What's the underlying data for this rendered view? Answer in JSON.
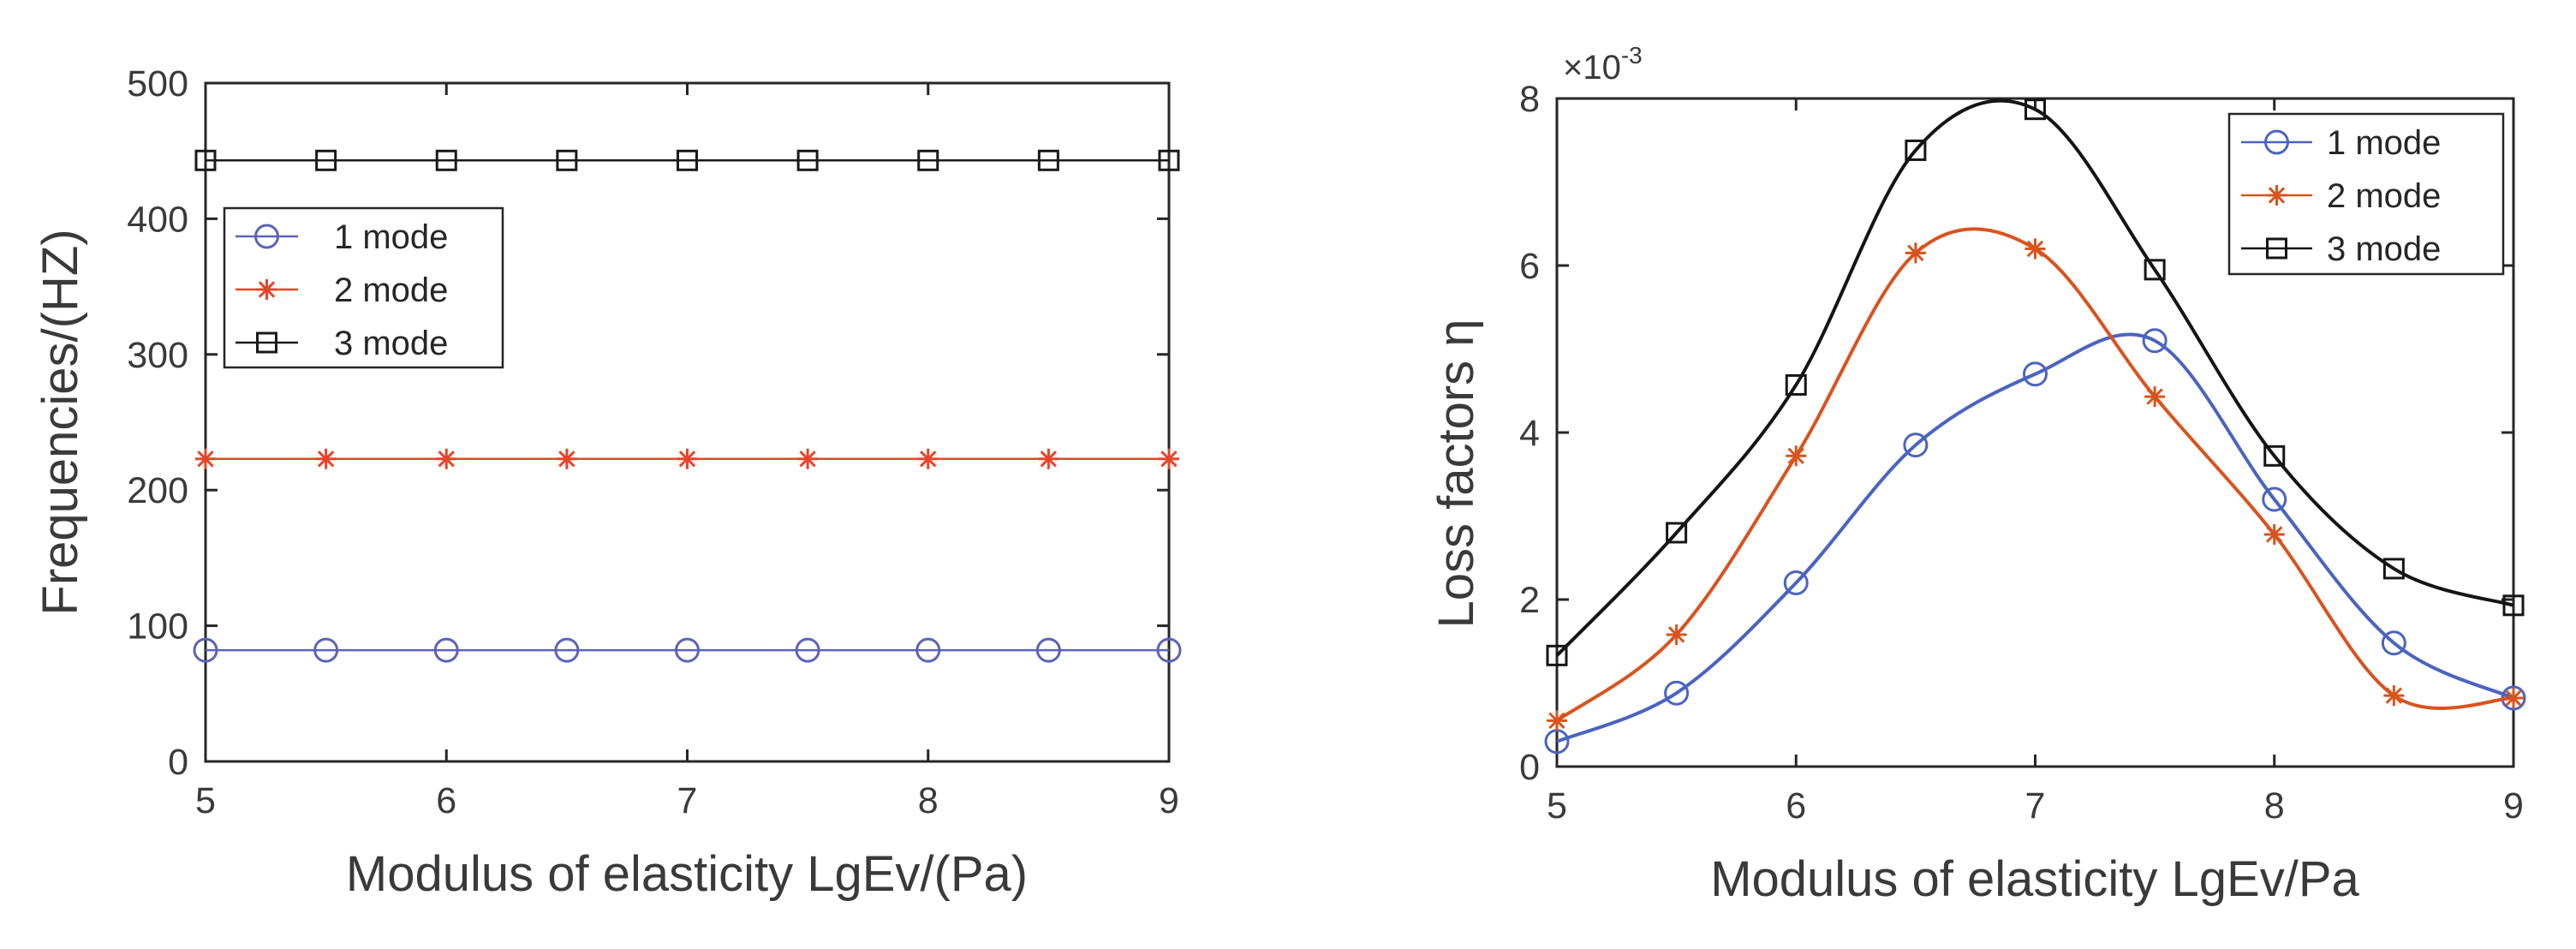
{
  "chart_data": [
    {
      "type": "line",
      "xlabel": "Modulus of elasticity LgEv/(Pa)",
      "ylabel": "Frequencies/(HZ)",
      "xlim": [
        5,
        9
      ],
      "ylim": [
        0,
        500
      ],
      "xticks": [
        5,
        6,
        7,
        8,
        9
      ],
      "yticks": [
        0,
        100,
        200,
        300,
        400,
        500
      ],
      "xtick_labels": [
        "5",
        "6",
        "7",
        "8",
        "9"
      ],
      "ytick_labels": [
        "0",
        "100",
        "200",
        "300",
        "400",
        "500"
      ],
      "legend_position": "upper-left",
      "series": [
        {
          "name": "1 mode",
          "color": "#5b63b7",
          "marker": "circle",
          "x": [
            5,
            5.5,
            6,
            6.5,
            7,
            7.5,
            8,
            8.5,
            9
          ],
          "y": [
            82,
            82,
            82,
            82,
            82,
            82,
            82,
            82,
            82
          ]
        },
        {
          "name": "2 mode",
          "color": "#e8442a",
          "marker": "asterisk",
          "x": [
            5,
            5.5,
            6,
            6.5,
            7,
            7.5,
            8,
            8.5,
            9
          ],
          "y": [
            223,
            223,
            223,
            223,
            223,
            223,
            223,
            223,
            223
          ]
        },
        {
          "name": "3 mode",
          "color": "#1a1a1a",
          "marker": "square",
          "x": [
            5,
            5.5,
            6,
            6.5,
            7,
            7.5,
            8,
            8.5,
            9
          ],
          "y": [
            443,
            443,
            443,
            443,
            443,
            443,
            443,
            443,
            443
          ]
        }
      ]
    },
    {
      "type": "line",
      "xlabel": "Modulus of elasticity LgEv/Pa",
      "ylabel": "Loss factors η",
      "exponent_label": "×10",
      "exponent_power": "-3",
      "xlim": [
        5,
        9
      ],
      "ylim": [
        0,
        8
      ],
      "xticks": [
        5,
        6,
        7,
        8,
        9
      ],
      "yticks": [
        0,
        2,
        4,
        6,
        8
      ],
      "xtick_labels": [
        "5",
        "6",
        "7",
        "8",
        "9"
      ],
      "ytick_labels": [
        "0",
        "2",
        "4",
        "6",
        "8"
      ],
      "legend_position": "upper-right",
      "series": [
        {
          "name": "1 mode",
          "color": "#4a64c0",
          "marker": "circle",
          "x": [
            5,
            5.5,
            6,
            6.5,
            7,
            7.5,
            8,
            8.5,
            9
          ],
          "y": [
            0.3,
            0.88,
            2.2,
            3.85,
            4.7,
            5.1,
            3.2,
            1.48,
            0.82
          ]
        },
        {
          "name": "2 mode",
          "color": "#d9531e",
          "marker": "asterisk",
          "x": [
            5,
            5.5,
            6,
            6.5,
            7,
            7.5,
            8,
            8.5,
            9
          ],
          "y": [
            0.55,
            1.58,
            3.72,
            6.15,
            6.2,
            4.43,
            2.78,
            0.85,
            0.82
          ]
        },
        {
          "name": "3 mode",
          "color": "#151515",
          "marker": "square",
          "x": [
            5,
            5.5,
            6,
            6.5,
            7,
            7.5,
            8,
            8.5,
            9
          ],
          "y": [
            1.33,
            2.8,
            4.57,
            7.38,
            7.87,
            5.95,
            3.72,
            2.37,
            1.93
          ]
        }
      ]
    }
  ]
}
